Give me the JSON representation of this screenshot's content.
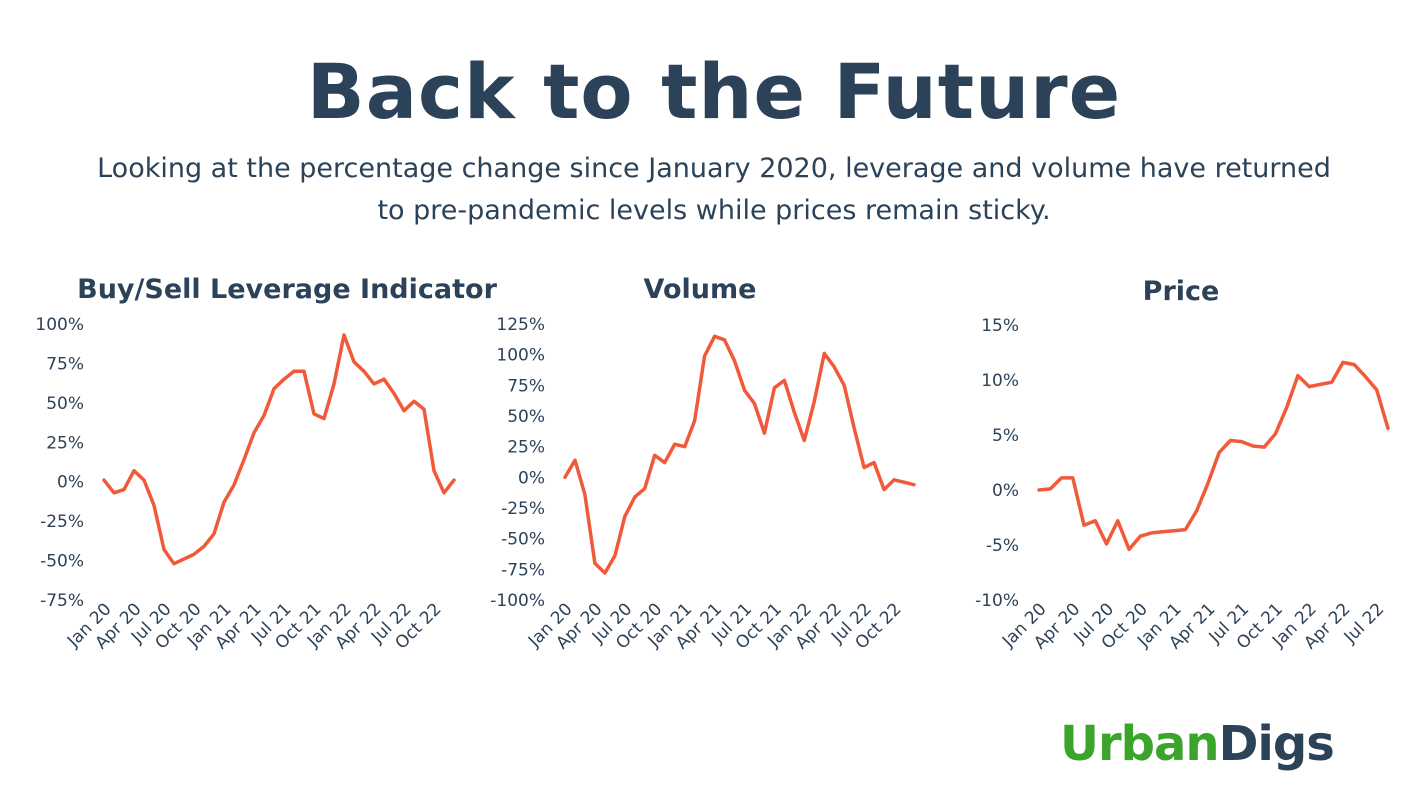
{
  "header": {
    "title": "Back to the Future",
    "subtitle_line1": "Looking at the percentage change since January 2020, leverage and volume have returned",
    "subtitle_line2": "to pre-pandemic levels while prices remain sticky."
  },
  "logo": {
    "part1": "Urban",
    "part2": "Digs",
    "color1": "#3aa52a",
    "color2": "#2c4259"
  },
  "colors": {
    "line": "#f05a3a",
    "text": "#2c4259"
  },
  "chart_data": [
    {
      "type": "line",
      "title": "Buy/Sell Leverage Indicator",
      "ylim": [
        -0.75,
        1.0
      ],
      "yticks": [
        1.0,
        0.75,
        0.5,
        0.25,
        0,
        -0.25,
        -0.5,
        -0.75
      ],
      "ytick_labels": [
        "100%",
        "75%",
        "50%",
        "25%",
        "0%",
        "-25%",
        "-50%",
        "-75%"
      ],
      "xtick_labels": [
        "Jan 20",
        "Apr 20",
        "Jul 20",
        "Oct 20",
        "Jan 21",
        "Apr 21",
        "Jul 21",
        "Oct 21",
        "Jan 22",
        "Apr 22",
        "Jul 22",
        "Oct 22"
      ],
      "grid": false,
      "values": [
        0.01,
        -0.07,
        -0.05,
        0.07,
        0.01,
        -0.15,
        -0.43,
        -0.52,
        -0.49,
        -0.46,
        -0.41,
        -0.33,
        -0.13,
        -0.02,
        0.14,
        0.31,
        0.42,
        0.59,
        0.65,
        0.7,
        0.7,
        0.43,
        0.4,
        0.62,
        0.93,
        0.76,
        0.7,
        0.62,
        0.65,
        0.56,
        0.45,
        0.51,
        0.46,
        0.07,
        -0.07,
        0.01
      ]
    },
    {
      "type": "line",
      "title": "Volume",
      "ylim": [
        -1.0,
        1.25
      ],
      "yticks": [
        1.25,
        1.0,
        0.75,
        0.5,
        0.25,
        0,
        -0.25,
        -0.5,
        -0.75,
        -1.0
      ],
      "ytick_labels": [
        "125%",
        "100%",
        "75%",
        "50%",
        "25%",
        "0%",
        "-25%",
        "-50%",
        "-75%",
        "-100%"
      ],
      "xtick_labels": [
        "Jan 20",
        "Apr 20",
        "Jul 20",
        "Oct 20",
        "Jan 21",
        "Apr 21",
        "Jul 21",
        "Oct 21",
        "Jan 22",
        "Apr 22",
        "Jul 22",
        "Oct 22"
      ],
      "grid": false,
      "values": [
        0.0,
        0.14,
        -0.14,
        -0.7,
        -0.78,
        -0.64,
        -0.32,
        -0.16,
        -0.09,
        0.18,
        0.12,
        0.27,
        0.25,
        0.46,
        0.99,
        1.15,
        1.12,
        0.95,
        0.71,
        0.6,
        0.36,
        0.73,
        0.79,
        0.53,
        0.3,
        0.62,
        1.01,
        0.9,
        0.75,
        0.4,
        0.08,
        0.12,
        -0.1,
        -0.02,
        -0.04,
        -0.06
      ]
    },
    {
      "type": "line",
      "title": "Price",
      "ylim": [
        -0.1,
        0.15
      ],
      "yticks": [
        0.15,
        0.1,
        0.05,
        0,
        -0.05,
        -0.1
      ],
      "ytick_labels": [
        "15%",
        "10%",
        "5%",
        "0%",
        "-5%",
        "-10%"
      ],
      "xtick_labels": [
        "Jan 20",
        "Apr 20",
        "Jul 20",
        "Oct 20",
        "Jan 21",
        "Apr 21",
        "Jul 21",
        "Oct 21",
        "Jan 22",
        "Apr 22",
        "Jul 22"
      ],
      "grid": false,
      "values": [
        0.0,
        0.001,
        0.011,
        0.011,
        -0.032,
        -0.028,
        -0.049,
        -0.028,
        -0.054,
        -0.042,
        -0.039,
        -0.038,
        -0.037,
        -0.036,
        -0.019,
        0.006,
        0.034,
        0.045,
        0.044,
        0.04,
        0.039,
        0.051,
        0.075,
        0.104,
        0.094,
        0.096,
        0.098,
        0.116,
        0.114,
        0.103,
        0.091,
        0.056
      ]
    }
  ]
}
